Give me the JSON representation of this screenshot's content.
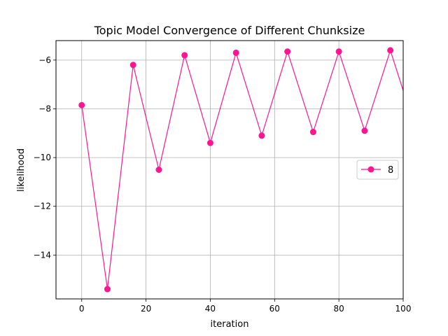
{
  "chart_data": {
    "type": "line",
    "title": "Topic Model Convergence of Different Chunksize",
    "xlabel": "iteration",
    "ylabel": "likelihood",
    "xlim": [
      -8,
      100
    ],
    "ylim": [
      -15.8,
      -5.2
    ],
    "xticks": [
      0,
      20,
      40,
      60,
      80,
      100
    ],
    "yticks": [
      -14,
      -12,
      -10,
      -8,
      -6
    ],
    "grid": true,
    "legend_position": "right",
    "series": [
      {
        "name": "8",
        "color": "#ff1493",
        "marker": "circle",
        "x": [
          0,
          8,
          16,
          24,
          32,
          40,
          48,
          56,
          64,
          72,
          80,
          88,
          96,
          104
        ],
        "y": [
          -7.85,
          -15.4,
          -6.2,
          -10.5,
          -5.8,
          -9.4,
          -5.7,
          -9.1,
          -5.65,
          -8.95,
          -5.65,
          -8.9,
          -5.6,
          -8.9
        ]
      }
    ]
  }
}
